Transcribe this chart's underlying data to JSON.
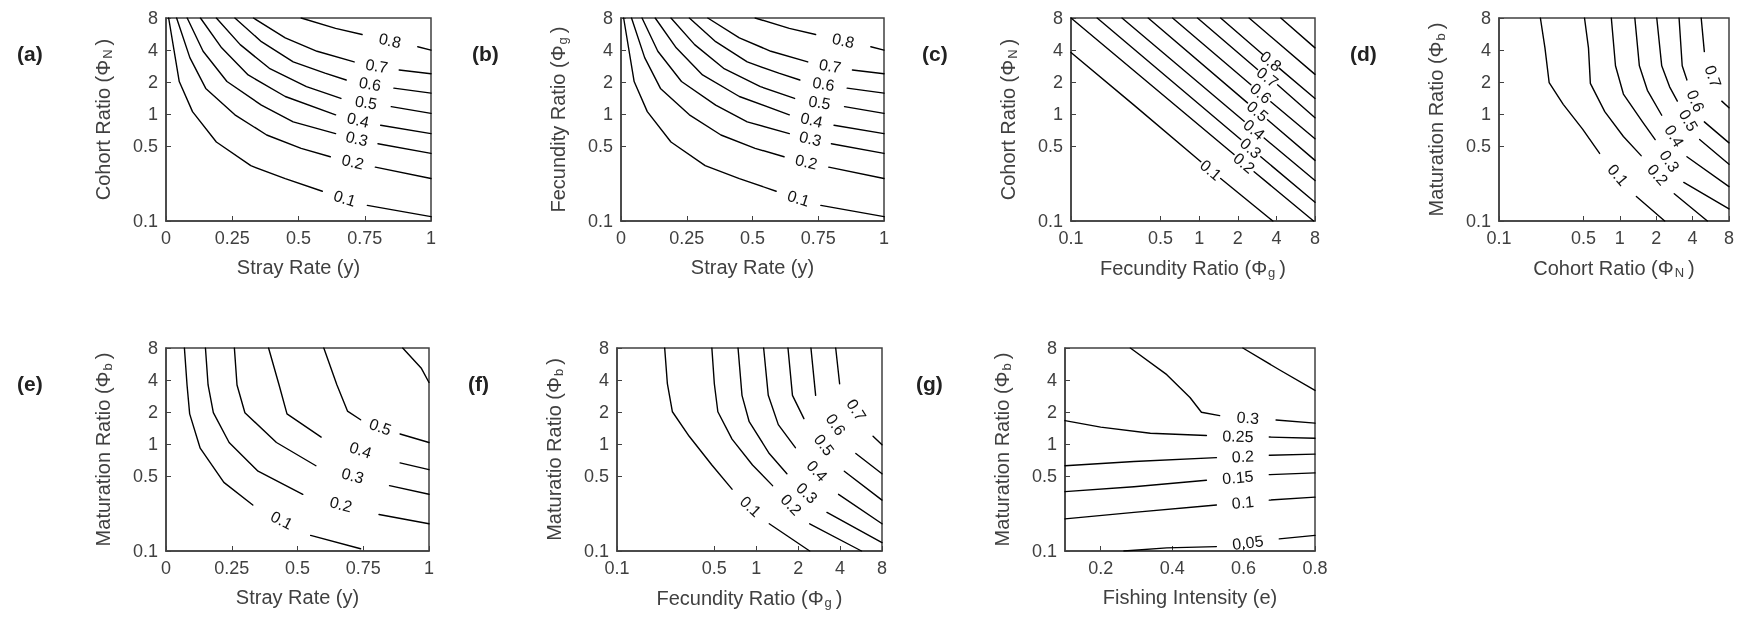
{
  "chart_data": [
    {
      "type": "line",
      "title": "(a)",
      "xlabel": "Stray Rate (y)",
      "ylabel": "Cohort Ratio (Φ$_{N}$)",
      "xlim": [
        0,
        1
      ],
      "xticks": [
        0,
        0.25,
        0.5,
        0.75,
        1
      ],
      "ylim": [
        0.1,
        8
      ],
      "yticks": [
        0.1,
        0.5,
        1,
        2,
        4,
        8
      ],
      "log": "y",
      "series": [
        {
          "name": "0.1",
          "color": "#000000",
          "x": [
            0.01,
            0.05,
            0.1,
            0.19,
            0.32,
            0.45,
            0.59,
            0.68,
            0.76,
            1.0
          ],
          "values": [
            8,
            2.03,
            1.06,
            0.55,
            0.33,
            0.25,
            0.19,
            null,
            0.14,
            0.11
          ]
        },
        {
          "name": "0.2",
          "color": "#000000",
          "x": [
            0.04,
            0.09,
            0.15,
            0.26,
            0.38,
            0.51,
            0.62,
            0.7,
            0.79,
            1.0
          ],
          "values": [
            8,
            3.4,
            1.75,
            0.99,
            0.64,
            0.48,
            0.4,
            null,
            0.32,
            0.25
          ]
        },
        {
          "name": "0.3",
          "color": "#000000",
          "x": [
            0.08,
            0.14,
            0.23,
            0.36,
            0.48,
            0.64,
            0.72,
            0.8,
            1.0
          ],
          "values": [
            8,
            3.9,
            2.03,
            1.22,
            0.85,
            0.66,
            null,
            0.53,
            0.43
          ]
        },
        {
          "name": "0.4",
          "color": "#000000",
          "x": [
            0.13,
            0.21,
            0.31,
            0.45,
            0.64,
            0.72,
            0.81,
            1.0
          ],
          "values": [
            8,
            4.2,
            2.34,
            1.47,
            0.99,
            null,
            0.79,
            0.66
          ]
        },
        {
          "name": "0.5",
          "color": "#000000",
          "x": [
            0.19,
            0.28,
            0.39,
            0.53,
            0.66,
            0.75,
            0.85,
            1.0
          ],
          "values": [
            8,
            4.5,
            2.7,
            1.82,
            1.41,
            null,
            1.18,
            1.02
          ]
        },
        {
          "name": "0.6",
          "color": "#000000",
          "x": [
            0.26,
            0.36,
            0.48,
            0.6,
            0.68,
            0.77,
            0.86,
            1.0
          ],
          "values": [
            8,
            4.8,
            3.1,
            2.43,
            2.1,
            null,
            1.76,
            1.58
          ]
        },
        {
          "name": "0.7",
          "color": "#000000",
          "x": [
            0.33,
            0.45,
            0.57,
            0.71,
            0.8,
            0.88,
            1.0
          ],
          "values": [
            8,
            5.2,
            3.9,
            3.1,
            null,
            2.6,
            2.4
          ]
        },
        {
          "name": "0.8",
          "color": "#000000",
          "x": [
            0.51,
            0.64,
            0.74,
            0.85,
            0.95,
            1.0
          ],
          "values": [
            8,
            6.4,
            5.6,
            null,
            4.3,
            4.0
          ]
        }
      ]
    },
    {
      "type": "line",
      "title": "(b)",
      "xlabel": "Stray Rate (y)",
      "ylabel": "Fecundity Ratio (Φ$_{g}$)",
      "xlim": [
        0,
        1
      ],
      "xticks": [
        0,
        0.25,
        0.5,
        0.75,
        1
      ],
      "ylim": [
        0.1,
        8
      ],
      "yticks": [
        0.1,
        0.5,
        1,
        2,
        4,
        8
      ],
      "log": "y",
      "series": [
        {
          "name": "0.1",
          "color": "#000000",
          "x": [
            0.01,
            0.05,
            0.1,
            0.19,
            0.32,
            0.45,
            0.59,
            0.68,
            0.76,
            1.0
          ],
          "values": [
            8,
            2.03,
            1.06,
            0.55,
            0.33,
            0.25,
            0.19,
            null,
            0.14,
            0.11
          ]
        },
        {
          "name": "0.2",
          "color": "#000000",
          "x": [
            0.04,
            0.09,
            0.15,
            0.26,
            0.38,
            0.51,
            0.62,
            0.7,
            0.79,
            1.0
          ],
          "values": [
            8,
            3.4,
            1.75,
            0.99,
            0.64,
            0.48,
            0.4,
            null,
            0.32,
            0.25
          ]
        },
        {
          "name": "0.3",
          "color": "#000000",
          "x": [
            0.08,
            0.14,
            0.23,
            0.36,
            0.48,
            0.64,
            0.72,
            0.8,
            1.0
          ],
          "values": [
            8,
            3.9,
            2.03,
            1.22,
            0.85,
            0.66,
            null,
            0.53,
            0.43
          ]
        },
        {
          "name": "0.4",
          "color": "#000000",
          "x": [
            0.13,
            0.21,
            0.31,
            0.45,
            0.64,
            0.72,
            0.81,
            1.0
          ],
          "values": [
            8,
            4.2,
            2.34,
            1.47,
            0.99,
            null,
            0.79,
            0.66
          ]
        },
        {
          "name": "0.5",
          "color": "#000000",
          "x": [
            0.19,
            0.28,
            0.39,
            0.53,
            0.66,
            0.75,
            0.85,
            1.0
          ],
          "values": [
            8,
            4.5,
            2.7,
            1.82,
            1.41,
            null,
            1.18,
            1.02
          ]
        },
        {
          "name": "0.6",
          "color": "#000000",
          "x": [
            0.26,
            0.36,
            0.48,
            0.6,
            0.68,
            0.77,
            0.86,
            1.0
          ],
          "values": [
            8,
            4.8,
            3.1,
            2.43,
            2.1,
            null,
            1.76,
            1.58
          ]
        },
        {
          "name": "0.7",
          "color": "#000000",
          "x": [
            0.33,
            0.45,
            0.57,
            0.71,
            0.8,
            0.88,
            1.0
          ],
          "values": [
            8,
            5.2,
            3.9,
            3.1,
            null,
            2.6,
            2.4
          ]
        },
        {
          "name": "0.8",
          "color": "#000000",
          "x": [
            0.51,
            0.64,
            0.74,
            0.85,
            0.95,
            1.0
          ],
          "values": [
            8,
            6.4,
            5.6,
            null,
            4.3,
            4.0
          ]
        }
      ]
    },
    {
      "type": "line",
      "title": "(c)",
      "xlabel": "Fecundity Ratio (Φ$_{g}$)",
      "ylabel": "Cohort Ratio (Φ$_{N}$)",
      "xlim": [
        0.1,
        8
      ],
      "xticks": [
        0.1,
        0.5,
        1,
        2,
        4,
        8
      ],
      "ylim": [
        0.1,
        8
      ],
      "yticks": [
        0.1,
        0.5,
        1,
        2,
        4,
        8
      ],
      "log": "xy",
      "series": [
        {
          "name": "0.1",
          "color": "#000000",
          "x": [
            0.1,
            0.31,
            1.03,
            1.23,
            1.47,
            3.75
          ],
          "values": [
            3.8,
            1.22,
            0.36,
            null,
            0.25,
            0.1
          ]
        },
        {
          "name": "0.2",
          "color": "#000000",
          "x": [
            0.1,
            1.87,
            2.24,
            2.68,
            7.8
          ],
          "values": [
            8,
            0.42,
            null,
            0.29,
            0.1
          ]
        },
        {
          "name": "0.3",
          "color": "#000000",
          "x": [
            0.16,
            2.11,
            2.53,
            3.02,
            8
          ],
          "values": [
            8,
            0.58,
            null,
            0.4,
            0.15
          ]
        },
        {
          "name": "0.4",
          "color": "#000000",
          "x": [
            0.25,
            2.24,
            2.68,
            3.21,
            8
          ],
          "values": [
            8,
            0.86,
            null,
            0.6,
            0.24
          ]
        },
        {
          "name": "0.5",
          "color": "#000000",
          "x": [
            0.4,
            2.38,
            2.85,
            3.41,
            8
          ],
          "values": [
            8,
            1.28,
            null,
            0.89,
            0.37
          ]
        },
        {
          "name": "0.6",
          "color": "#000000",
          "x": [
            0.62,
            2.53,
            3.02,
            3.62,
            8
          ],
          "values": [
            8,
            1.89,
            null,
            1.31,
            0.59
          ]
        },
        {
          "name": "0.7",
          "color": "#000000",
          "x": [
            0.97,
            2.85,
            3.41,
            4.08,
            8
          ],
          "values": [
            8,
            2.63,
            null,
            1.89,
            0.93
          ]
        },
        {
          "name": "0.8",
          "color": "#000000",
          "x": [
            1.47,
            3.12,
            3.62,
            4.2,
            8
          ],
          "values": [
            8,
            3.66,
            null,
            2.71,
            1.41
          ]
        },
        {
          "color": "#000000",
          "x": [
            2.45,
            8
          ],
          "values": [
            8,
            2.37
          ]
        },
        {
          "color": "#000000",
          "x": [
            4.33,
            8
          ],
          "values": [
            8,
            4.2
          ]
        }
      ]
    },
    {
      "type": "line",
      "title": "(d)",
      "xlabel": "Cohort Ratio (Φ$_{N}$)",
      "ylabel": "Maturation Ratio (Φ$_{b}$)",
      "xlim": [
        0.1,
        8
      ],
      "xticks": [
        0.1,
        0.5,
        1,
        2,
        4,
        8
      ],
      "ylim": [
        0.1,
        8
      ],
      "yticks": [
        0.1,
        0.5,
        1,
        2,
        4,
        8
      ],
      "log": "xy",
      "series": [
        {
          "name": "0.1",
          "color": "#000000",
          "x": [
            0.22,
            0.24,
            0.26,
            0.34,
            0.49,
            0.68,
            0.9,
            1.37,
            2.35
          ],
          "values": [
            8,
            4.2,
            1.98,
            1.24,
            0.73,
            0.43,
            null,
            0.17,
            0.1
          ]
        },
        {
          "name": "0.2",
          "color": "#000000",
          "x": [
            0.51,
            0.55,
            0.57,
            0.75,
            1.07,
            1.5,
            1.96,
            2.82,
            5.3
          ],
          "values": [
            8,
            4.2,
            1.95,
            1.06,
            0.62,
            0.41,
            null,
            0.18,
            0.1
          ]
        },
        {
          "name": "0.3",
          "color": "#000000",
          "x": [
            0.85,
            0.92,
            1.07,
            1.54,
            1.96,
            2.5,
            3.38,
            8
          ],
          "values": [
            8,
            2.85,
            1.55,
            0.85,
            0.58,
            null,
            0.23,
            0.13
          ]
        },
        {
          "name": "0.4",
          "color": "#000000",
          "x": [
            1.33,
            1.45,
            1.69,
            2.22,
            2.82,
            3.59,
            8
          ],
          "values": [
            8,
            2.85,
            1.68,
            0.98,
            null,
            0.4,
            0.21
          ]
        },
        {
          "name": "0.5",
          "color": "#000000",
          "x": [
            2.02,
            2.22,
            2.58,
            2.99,
            3.59,
            4.57,
            8
          ],
          "values": [
            8,
            2.85,
            1.81,
            1.33,
            null,
            0.58,
            0.34
          ]
        },
        {
          "name": "0.6",
          "color": "#000000",
          "x": [
            3.09,
            3.28,
            3.59,
            4.05,
            5.0,
            8
          ],
          "values": [
            8,
            2.85,
            2.1,
            null,
            0.85,
            0.54
          ]
        },
        {
          "name": "0.7",
          "color": "#000000",
          "x": [
            4.71,
            5.0,
            5.64,
            6.97,
            8
          ],
          "values": [
            8,
            3.87,
            null,
            1.33,
            1.15
          ]
        }
      ]
    },
    {
      "type": "line",
      "title": "(e)",
      "xlabel": "Stray Rate (y)",
      "ylabel": "Maturation Ratio (Φ$_{b}$)",
      "xlim": [
        0,
        1
      ],
      "xticks": [
        0,
        0.25,
        0.5,
        0.75,
        1
      ],
      "ylim": [
        0.1,
        8
      ],
      "yticks": [
        0.1,
        0.5,
        1,
        2,
        4,
        8
      ],
      "log": "y",
      "series": [
        {
          "name": "0.1",
          "color": "#000000",
          "x": [
            0.07,
            0.08,
            0.09,
            0.13,
            0.22,
            0.33,
            0.44,
            0.55,
            0.74
          ],
          "values": [
            8,
            3.6,
            1.93,
            0.92,
            0.44,
            0.27,
            null,
            0.14,
            0.105
          ]
        },
        {
          "name": "0.2",
          "color": "#000000",
          "x": [
            0.15,
            0.16,
            0.18,
            0.24,
            0.35,
            0.52,
            0.68,
            0.81,
            1.0
          ],
          "values": [
            8,
            3.6,
            1.98,
            1.04,
            0.56,
            0.34,
            null,
            0.22,
            0.18
          ]
        },
        {
          "name": "0.3",
          "color": "#000000",
          "x": [
            0.26,
            0.27,
            0.3,
            0.42,
            0.57,
            0.72,
            0.85,
            1.0
          ],
          "values": [
            8,
            3.6,
            1.98,
            1.04,
            0.63,
            null,
            0.41,
            0.34
          ]
        },
        {
          "name": "0.4",
          "color": "#000000",
          "x": [
            0.39,
            0.43,
            0.46,
            0.59,
            0.75,
            0.89,
            1.0
          ],
          "values": [
            8,
            3.6,
            1.93,
            1.17,
            null,
            0.67,
            0.58
          ]
        },
        {
          "name": "0.5",
          "color": "#000000",
          "x": [
            0.6,
            0.65,
            0.69,
            0.74,
            0.8,
            0.89,
            1.0
          ],
          "values": [
            8,
            3.6,
            2.05,
            1.7,
            null,
            1.25,
            1.04
          ]
        },
        {
          "color": "#000000",
          "x": [
            0.9,
            0.97,
            1.0
          ],
          "values": [
            8,
            5.2,
            3.8
          ]
        }
      ]
    },
    {
      "type": "line",
      "title": "(f)",
      "xlabel": "Fecundity Ratio (Φ$_{g}$)",
      "ylabel": "Maturatio Ratio (Φ$_{b}$)",
      "xlim": [
        0.1,
        8
      ],
      "xticks": [
        0.1,
        0.5,
        1,
        2,
        4,
        8
      ],
      "ylim": [
        0.1,
        8
      ],
      "yticks": [
        0.1,
        0.5,
        1,
        2,
        4,
        8
      ],
      "log": "xy",
      "series": [
        {
          "name": "0.1",
          "color": "#000000",
          "x": [
            0.22,
            0.23,
            0.25,
            0.33,
            0.48,
            0.67,
            0.85,
            1.24,
            2.42
          ],
          "values": [
            8,
            3.7,
            2.02,
            1.19,
            0.64,
            0.38,
            null,
            0.18,
            0.1
          ]
        },
        {
          "name": "0.2",
          "color": "#000000",
          "x": [
            0.48,
            0.5,
            0.53,
            0.67,
            0.94,
            1.31,
            1.66,
            2.42,
            5.7
          ],
          "values": [
            8,
            3.7,
            2.02,
            1.12,
            0.64,
            0.41,
            null,
            0.18,
            0.1
          ]
        },
        {
          "name": "0.3",
          "color": "#000000",
          "x": [
            0.74,
            0.79,
            0.89,
            1.24,
            1.66,
            2.2,
            3.22,
            8
          ],
          "values": [
            8,
            2.88,
            1.63,
            0.82,
            0.53,
            null,
            0.23,
            0.12
          ]
        },
        {
          "name": "0.4",
          "color": "#000000",
          "x": [
            1.13,
            1.22,
            1.44,
            1.91,
            2.67,
            3.9,
            8
          ],
          "values": [
            8,
            2.88,
            1.53,
            0.93,
            null,
            0.34,
            0.18
          ]
        },
        {
          "name": "0.5",
          "color": "#000000",
          "x": [
            1.69,
            1.82,
            2.2,
            2.93,
            4.29,
            8
          ],
          "values": [
            8,
            2.88,
            1.74,
            null,
            0.56,
            0.3
          ]
        },
        {
          "name": "0.6",
          "color": "#000000",
          "x": [
            2.47,
            2.67,
            3.38,
            5.19,
            8
          ],
          "values": [
            8,
            2.88,
            null,
            0.82,
            0.53
          ]
        },
        {
          "name": "0.7",
          "color": "#000000",
          "x": [
            3.72,
            3.97,
            5.19,
            6.9,
            8
          ],
          "values": [
            8,
            3.7,
            null,
            1.19,
            0.99
          ]
        }
      ]
    },
    {
      "type": "line",
      "title": "(g)",
      "xlabel": "Fishing Intensity (e)",
      "ylabel": "Maturation Ratio (Φ$_{b}$)",
      "xlim": [
        0.1,
        0.8
      ],
      "xticks": [
        0.2,
        0.4,
        0.6,
        0.8
      ],
      "ylim": [
        0.1,
        8
      ],
      "yticks": [
        0.1,
        0.5,
        1,
        2,
        4,
        8
      ],
      "log": "y",
      "series": [
        {
          "name": "0.3",
          "color": "#000000",
          "x": [
            0.283,
            0.385,
            0.45,
            0.482,
            0.533,
            0.598,
            0.691,
            0.8
          ],
          "values": [
            8,
            4.5,
            2.75,
            2.0,
            1.86,
            null,
            1.69,
            1.58
          ]
        },
        {
          "name": "0.25",
          "color": "#000000",
          "x": [
            0.1,
            0.2,
            0.339,
            0.496,
            0.58,
            0.672,
            0.8
          ],
          "values": [
            1.67,
            1.45,
            1.27,
            1.21,
            null,
            1.17,
            1.14
          ]
        },
        {
          "name": "0.2",
          "color": "#000000",
          "x": [
            0.1,
            0.293,
            0.524,
            0.598,
            0.672,
            0.8
          ],
          "values": [
            0.63,
            0.69,
            0.75,
            null,
            0.79,
            0.81
          ]
        },
        {
          "name": "0.15",
          "color": "#000000",
          "x": [
            0.1,
            0.293,
            0.496,
            0.58,
            0.672,
            0.8
          ],
          "values": [
            0.36,
            0.4,
            0.46,
            null,
            0.52,
            0.54
          ]
        },
        {
          "name": "0.1",
          "color": "#000000",
          "x": [
            0.1,
            0.293,
            0.524,
            0.598,
            0.672,
            0.8
          ],
          "values": [
            0.2,
            0.23,
            0.27,
            null,
            0.3,
            0.32
          ]
        },
        {
          "name": "0.05",
          "color": "#000000",
          "x": [
            0.265,
            0.385,
            0.524,
            0.612,
            0.7,
            0.8
          ],
          "values": [
            0.1,
            0.107,
            0.11,
            null,
            0.13,
            0.14
          ]
        },
        {
          "color": "#000000",
          "x": [
            0.598,
            0.7,
            0.8
          ],
          "values": [
            8,
            5.0,
            3.2
          ]
        }
      ]
    }
  ]
}
